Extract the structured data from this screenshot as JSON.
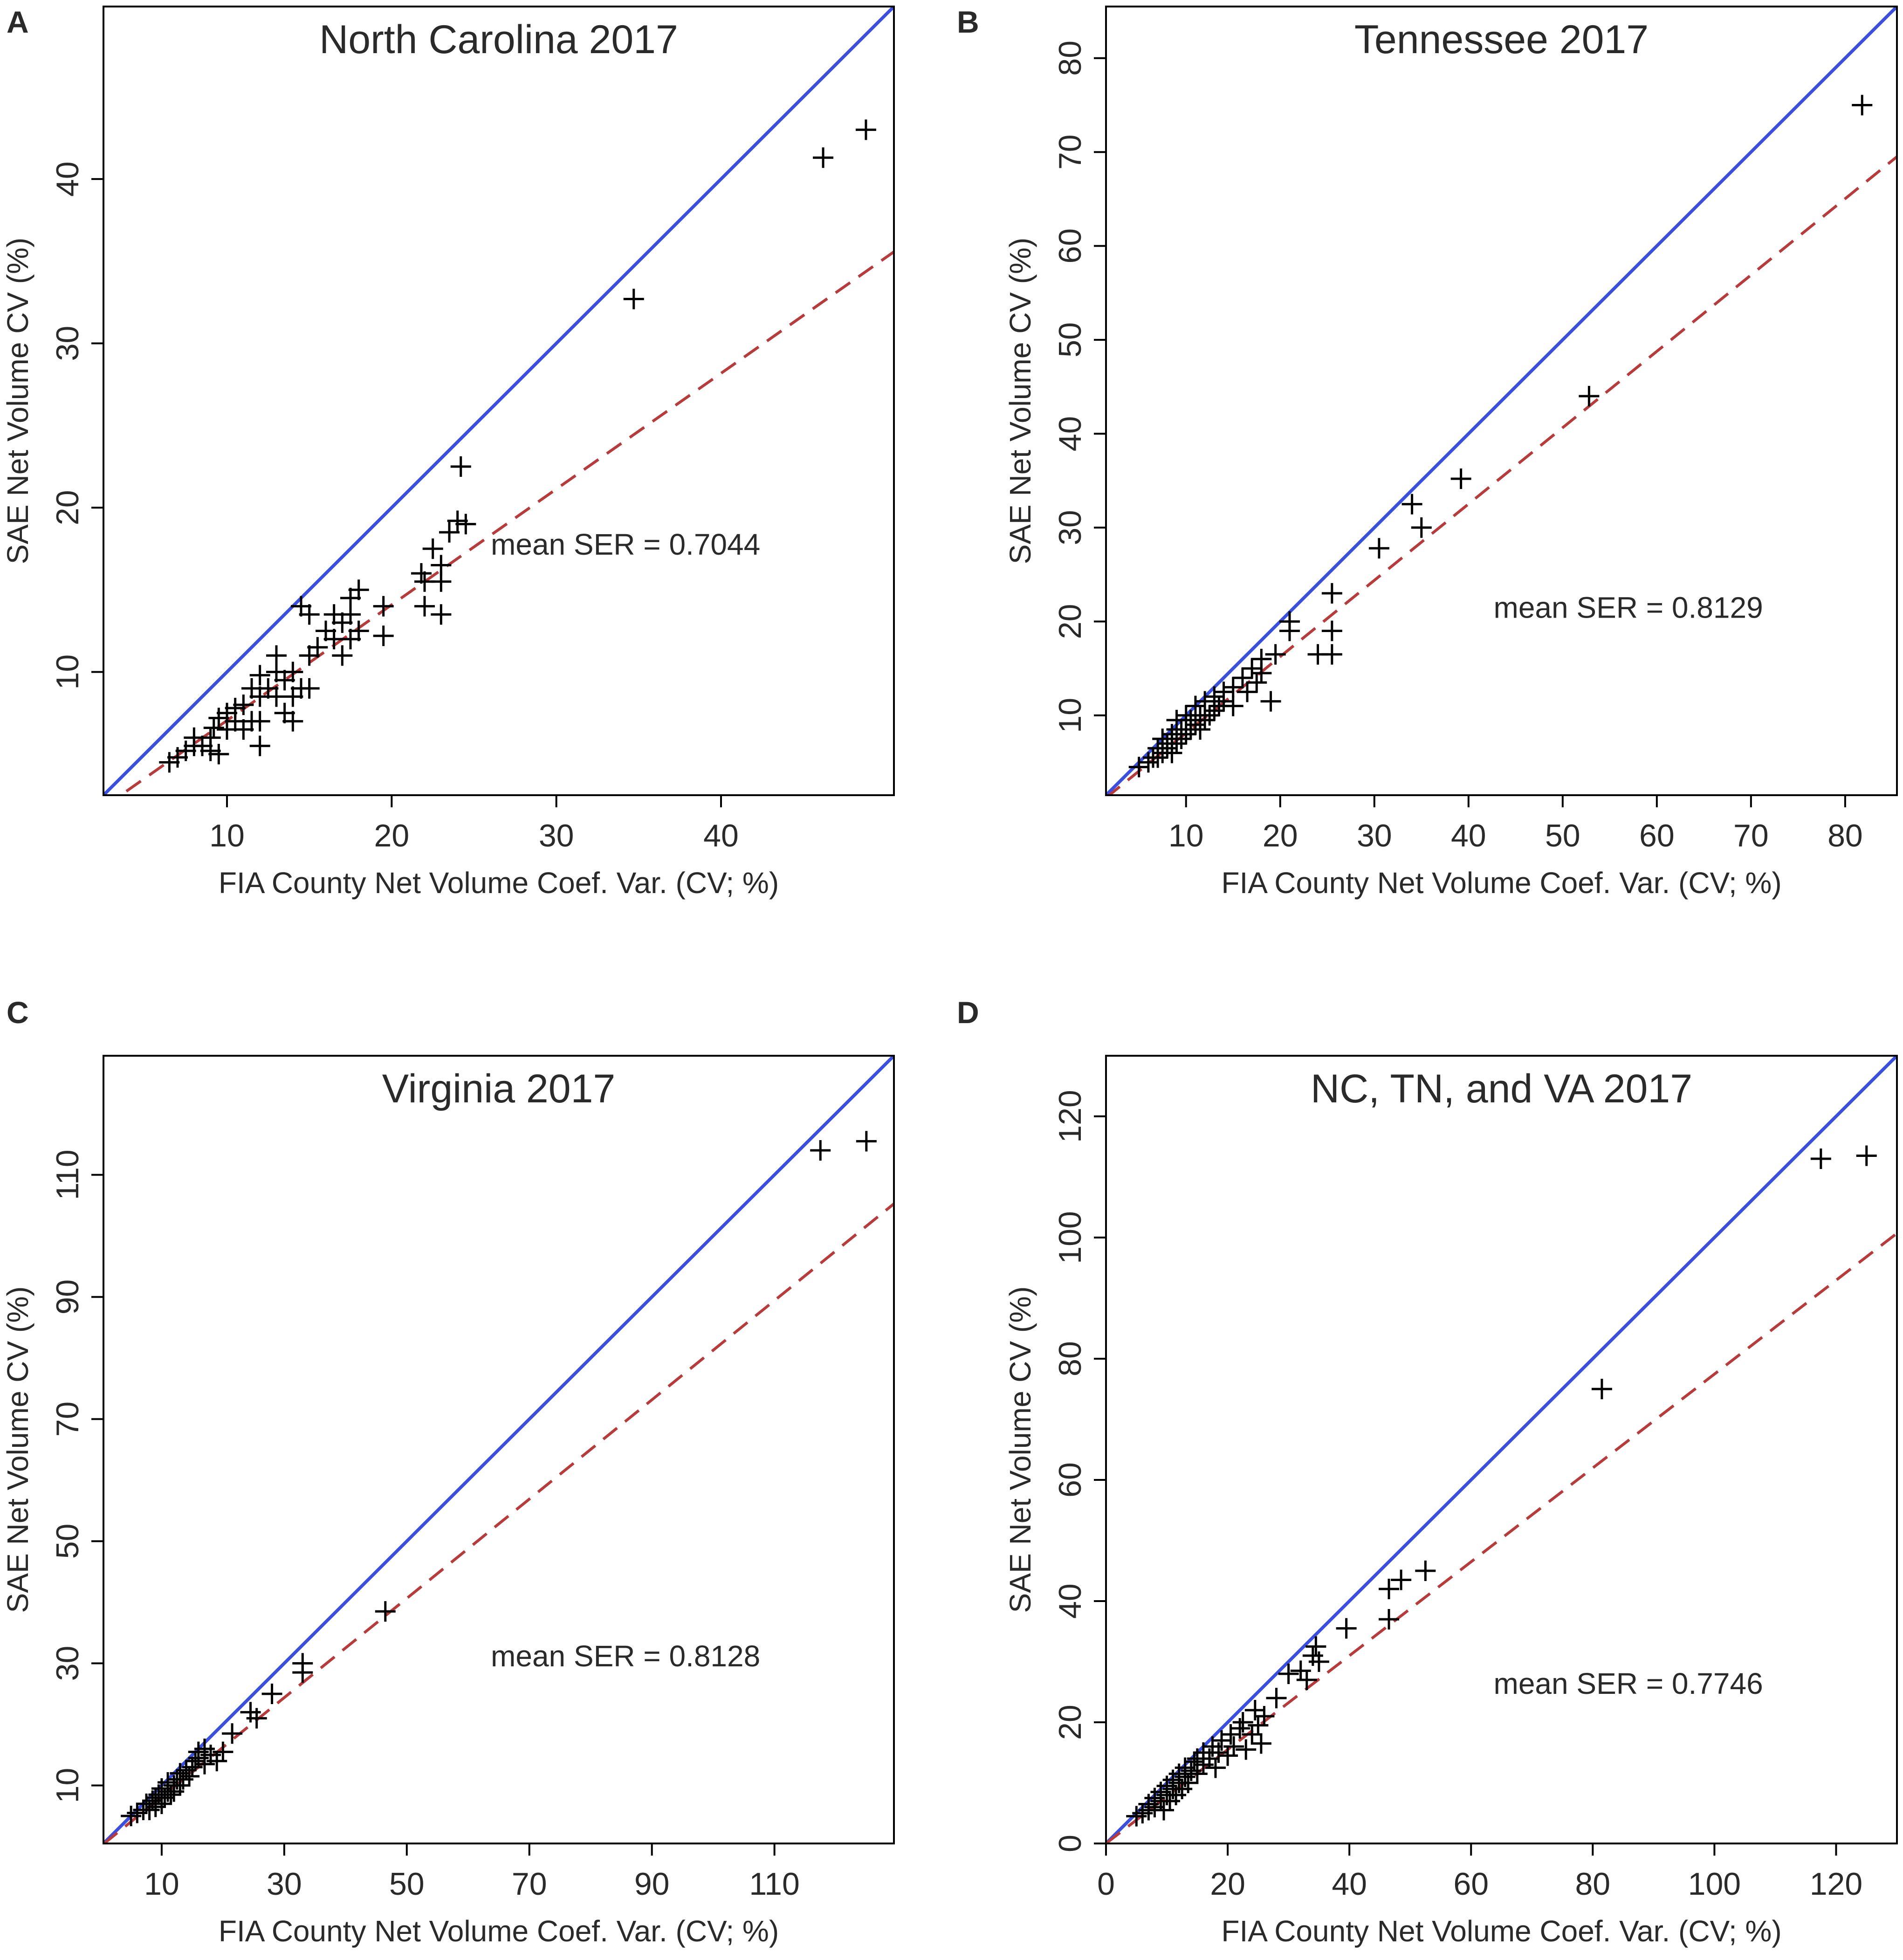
{
  "figure": {
    "colors": {
      "identity_line": "#3a4fe0",
      "fit_line": "#b83a3a",
      "points": "#000000",
      "frame": "#000000"
    },
    "panels": [
      "A",
      "B",
      "C",
      "D"
    ]
  },
  "chart_data": [
    {
      "panel": "A",
      "type": "scatter",
      "title": "North Carolina 2017",
      "xlabel": "FIA County Net Volume Coef. Var. (CV; %)",
      "ylabel": "SAE Net Volume CV (%)",
      "xlim": [
        2.5,
        50.5
      ],
      "ylim": [
        2.5,
        50.5
      ],
      "xticks": [
        10,
        20,
        30,
        40
      ],
      "yticks": [
        10,
        20,
        30,
        40
      ],
      "annotation": "mean SER =  0.7044",
      "identity_line": {
        "slope": 1,
        "intercept": 0
      },
      "fit_line": {
        "slope": 0.7044,
        "intercept": 0
      },
      "points": [
        [
          6.5,
          4.5
        ],
        [
          7,
          4.8
        ],
        [
          7.5,
          5.2
        ],
        [
          8,
          5.5
        ],
        [
          8,
          6
        ],
        [
          8.5,
          5.5
        ],
        [
          9,
          5.2
        ],
        [
          9,
          6
        ],
        [
          9.2,
          6.6
        ],
        [
          9.5,
          5
        ],
        [
          9.5,
          7.2
        ],
        [
          10,
          6.5
        ],
        [
          10,
          7.5
        ],
        [
          10.5,
          7
        ],
        [
          10.5,
          7.8
        ],
        [
          11,
          6.5
        ],
        [
          11,
          8
        ],
        [
          11.5,
          7
        ],
        [
          11.5,
          9
        ],
        [
          12,
          7
        ],
        [
          12,
          8.5
        ],
        [
          12,
          9.8
        ],
        [
          12,
          5.5
        ],
        [
          12.5,
          9
        ],
        [
          13,
          8.5
        ],
        [
          13,
          10
        ],
        [
          13,
          11
        ],
        [
          13.5,
          7.5
        ],
        [
          13.5,
          9.5
        ],
        [
          14,
          7
        ],
        [
          14,
          8.5
        ],
        [
          14,
          10
        ],
        [
          14.5,
          9
        ],
        [
          14.5,
          14
        ],
        [
          15,
          9
        ],
        [
          15,
          11
        ],
        [
          15,
          13.5
        ],
        [
          15.5,
          11.5
        ],
        [
          16,
          12.5
        ],
        [
          16.5,
          12
        ],
        [
          16.5,
          13.5
        ],
        [
          17,
          11
        ],
        [
          17,
          13
        ],
        [
          17.5,
          12
        ],
        [
          17.5,
          14.5
        ],
        [
          17.5,
          13.5
        ],
        [
          18,
          15
        ],
        [
          18,
          12.5
        ],
        [
          19.5,
          14
        ],
        [
          19.5,
          12.2
        ],
        [
          21.8,
          16
        ],
        [
          22,
          15.5
        ],
        [
          22,
          14
        ],
        [
          22.5,
          17.5
        ],
        [
          23,
          16.5
        ],
        [
          23,
          15.5
        ],
        [
          23,
          13.5
        ],
        [
          23.5,
          18.5
        ],
        [
          24,
          19.2
        ],
        [
          24.2,
          22.5
        ],
        [
          24.5,
          19
        ],
        [
          34.7,
          32.7
        ],
        [
          46.2,
          41.3
        ],
        [
          48.8,
          43
        ]
      ]
    },
    {
      "panel": "B",
      "type": "scatter",
      "title": "Tennessee 2017",
      "xlabel": "FIA County Net Volume Coef. Var. (CV; %)",
      "ylabel": "SAE Net Volume CV (%)",
      "xlim": [
        1.5,
        85.5
      ],
      "ylim": [
        1.5,
        85.5
      ],
      "xticks": [
        10,
        20,
        30,
        40,
        50,
        60,
        70,
        80
      ],
      "yticks": [
        10,
        20,
        30,
        40,
        50,
        60,
        70,
        80
      ],
      "annotation": "mean SER =  0.8129",
      "identity_line": {
        "slope": 1,
        "intercept": 0
      },
      "fit_line": {
        "slope": 0.8129,
        "intercept": 0
      },
      "points": [
        [
          5,
          4.5
        ],
        [
          6,
          5
        ],
        [
          6.5,
          5.5
        ],
        [
          7,
          5.5
        ],
        [
          7,
          6.5
        ],
        [
          7.5,
          6
        ],
        [
          7.5,
          7.5
        ],
        [
          8,
          6.5
        ],
        [
          8,
          7
        ],
        [
          8.5,
          8
        ],
        [
          8.5,
          6
        ],
        [
          9,
          7
        ],
        [
          9,
          8.5
        ],
        [
          9,
          9.5
        ],
        [
          9.5,
          7.5
        ],
        [
          9.5,
          8.5
        ],
        [
          10,
          8
        ],
        [
          10,
          10
        ],
        [
          10.5,
          8.5
        ],
        [
          10.5,
          9.5
        ],
        [
          11,
          9
        ],
        [
          11,
          11
        ],
        [
          11.5,
          8.5
        ],
        [
          11.5,
          10
        ],
        [
          12,
          9.5
        ],
        [
          12,
          11.5
        ],
        [
          12.5,
          10
        ],
        [
          13,
          10.5
        ],
        [
          13,
          12
        ],
        [
          13.5,
          11
        ],
        [
          14,
          11.5
        ],
        [
          14,
          12.5
        ],
        [
          15,
          11
        ],
        [
          15,
          13
        ],
        [
          16,
          14
        ],
        [
          16.5,
          12.5
        ],
        [
          17,
          15
        ],
        [
          17.5,
          13.5
        ],
        [
          18,
          16
        ],
        [
          18,
          14.5
        ],
        [
          19,
          11.5
        ],
        [
          19.5,
          16.5
        ],
        [
          21,
          19
        ],
        [
          21,
          20
        ],
        [
          24,
          16.5
        ],
        [
          25.5,
          16.5
        ],
        [
          25.5,
          19
        ],
        [
          25.5,
          23
        ],
        [
          30.5,
          27.8
        ],
        [
          34,
          32.5
        ],
        [
          35,
          30
        ],
        [
          39.2,
          35.2
        ],
        [
          52.8,
          44
        ],
        [
          81.8,
          75
        ]
      ]
    },
    {
      "panel": "C",
      "type": "scatter",
      "title": "Virginia 2017",
      "xlabel": "FIA County Net Volume Coef. Var. (CV; %)",
      "ylabel": "SAE Net Volume CV (%)",
      "xlim": [
        0.5,
        129.5
      ],
      "ylim": [
        0.5,
        129.5
      ],
      "xticks": [
        10,
        30,
        50,
        70,
        90,
        110
      ],
      "yticks": [
        10,
        30,
        50,
        70,
        90,
        110
      ],
      "annotation": "mean SER =  0.8128",
      "identity_line": {
        "slope": 1,
        "intercept": 0
      },
      "fit_line": {
        "slope": 0.8128,
        "intercept": 0
      },
      "points": [
        [
          5,
          5
        ],
        [
          6,
          5.5
        ],
        [
          7,
          6
        ],
        [
          7.5,
          7
        ],
        [
          8,
          6
        ],
        [
          8.5,
          7.5
        ],
        [
          9,
          8
        ],
        [
          9,
          6.5
        ],
        [
          9.5,
          8.5
        ],
        [
          10,
          9.5
        ],
        [
          10,
          7
        ],
        [
          10.5,
          8
        ],
        [
          11,
          9
        ],
        [
          11,
          10.5
        ],
        [
          11.5,
          8.5
        ],
        [
          12,
          10
        ],
        [
          12,
          9
        ],
        [
          12.5,
          11
        ],
        [
          13,
          10
        ],
        [
          13,
          12
        ],
        [
          13.5,
          11
        ],
        [
          14,
          12.5
        ],
        [
          14.5,
          11.5
        ],
        [
          15,
          13
        ],
        [
          15.5,
          14
        ],
        [
          16,
          14.5
        ],
        [
          16,
          15.5
        ],
        [
          17,
          13.5
        ],
        [
          17,
          16
        ],
        [
          18,
          15
        ],
        [
          19,
          14
        ],
        [
          20,
          15.5
        ],
        [
          21.5,
          18.5
        ],
        [
          24.5,
          22
        ],
        [
          25.5,
          21
        ],
        [
          28,
          25
        ],
        [
          33,
          28.5
        ],
        [
          33,
          30
        ],
        [
          46.5,
          38.5
        ],
        [
          117.5,
          114
        ],
        [
          125,
          115.5
        ]
      ]
    },
    {
      "panel": "D",
      "type": "scatter",
      "title": "NC, TN, and VA 2017",
      "xlabel": "FIA County Net Volume Coef. Var. (CV; %)",
      "ylabel": "SAE Net Volume CV (%)",
      "xlim": [
        0,
        130
      ],
      "ylim": [
        0,
        130
      ],
      "xticks": [
        0,
        20,
        40,
        60,
        80,
        100,
        120
      ],
      "yticks": [
        0,
        20,
        40,
        60,
        80,
        100,
        120
      ],
      "annotation": "mean SER =  0.7746",
      "identity_line": {
        "slope": 1,
        "intercept": 0
      },
      "fit_line": {
        "slope": 0.7746,
        "intercept": 0
      },
      "points": [
        [
          5,
          4.5
        ],
        [
          6,
          5
        ],
        [
          7,
          5.5
        ],
        [
          7,
          6.5
        ],
        [
          8,
          6
        ],
        [
          8,
          7.5
        ],
        [
          9,
          7
        ],
        [
          9,
          8.5
        ],
        [
          9.5,
          5.5
        ],
        [
          10,
          8
        ],
        [
          10,
          9.5
        ],
        [
          10.5,
          7
        ],
        [
          11,
          9
        ],
        [
          11,
          10.5
        ],
        [
          11.5,
          8
        ],
        [
          12,
          10
        ],
        [
          12,
          11.5
        ],
        [
          12.5,
          9
        ],
        [
          13,
          11
        ],
        [
          13,
          12.5
        ],
        [
          13.5,
          10
        ],
        [
          14,
          12
        ],
        [
          14.5,
          13.5
        ],
        [
          15,
          11.5
        ],
        [
          15,
          14
        ],
        [
          16,
          13
        ],
        [
          16,
          15
        ],
        [
          17,
          14
        ],
        [
          17.5,
          16
        ],
        [
          18,
          12.5
        ],
        [
          18.5,
          15
        ],
        [
          19,
          17
        ],
        [
          20,
          14.5
        ],
        [
          20.5,
          18
        ],
        [
          21,
          16
        ],
        [
          22,
          19
        ],
        [
          22.5,
          20
        ],
        [
          23,
          15.5
        ],
        [
          24,
          18
        ],
        [
          24.5,
          22
        ],
        [
          25,
          19.5
        ],
        [
          25.5,
          16.5
        ],
        [
          26,
          21
        ],
        [
          28,
          24
        ],
        [
          30,
          28
        ],
        [
          32,
          28.5
        ],
        [
          33,
          27
        ],
        [
          34,
          31
        ],
        [
          34.5,
          32.5
        ],
        [
          35,
          30
        ],
        [
          39.5,
          35.5
        ],
        [
          46.5,
          37
        ],
        [
          46.5,
          42
        ],
        [
          48.5,
          43.5
        ],
        [
          52.5,
          45
        ],
        [
          81.5,
          75
        ],
        [
          117.5,
          113
        ],
        [
          125,
          113.5
        ]
      ]
    }
  ]
}
